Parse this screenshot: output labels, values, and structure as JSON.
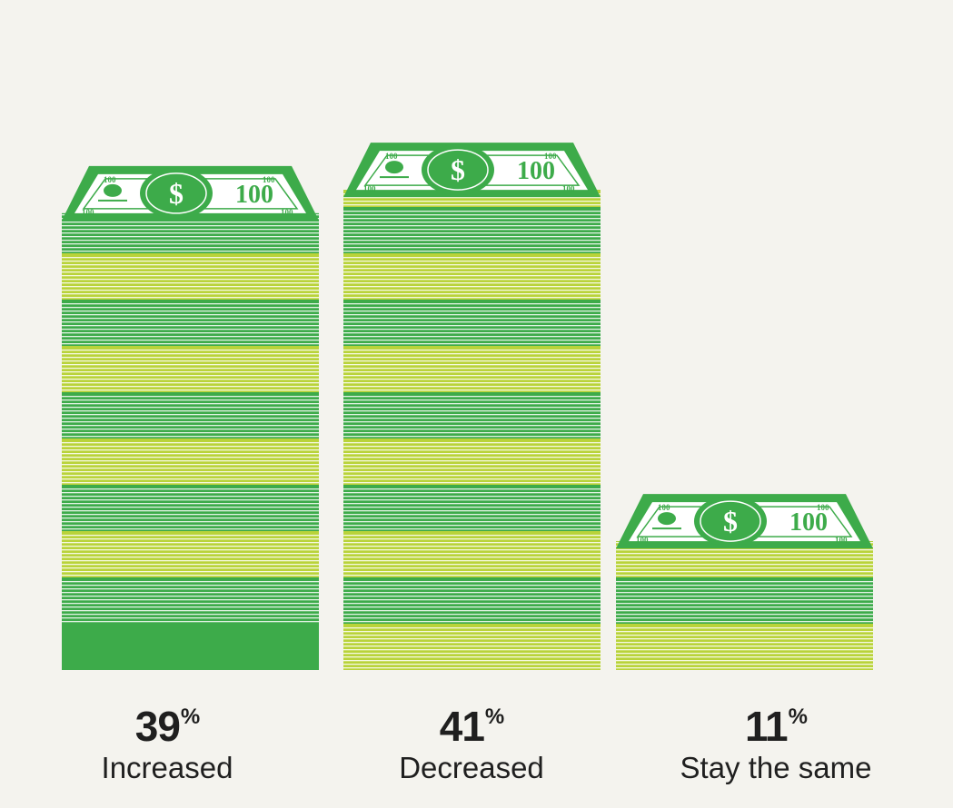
{
  "chart_data": {
    "type": "bar",
    "categories": [
      "Increased",
      "Decreased",
      "Stay the same"
    ],
    "values": [
      39,
      41,
      11
    ],
    "value_suffix": "%",
    "bill_denomination": "100",
    "bill_symbol": "$",
    "colors": {
      "background": "#f4f3ee",
      "stack_dark": "#3dab4a",
      "stack_light": "#b9d33a",
      "bill_green": "#3dab4a",
      "bill_face": "#ffffff",
      "text": "#1f1f1f"
    }
  }
}
